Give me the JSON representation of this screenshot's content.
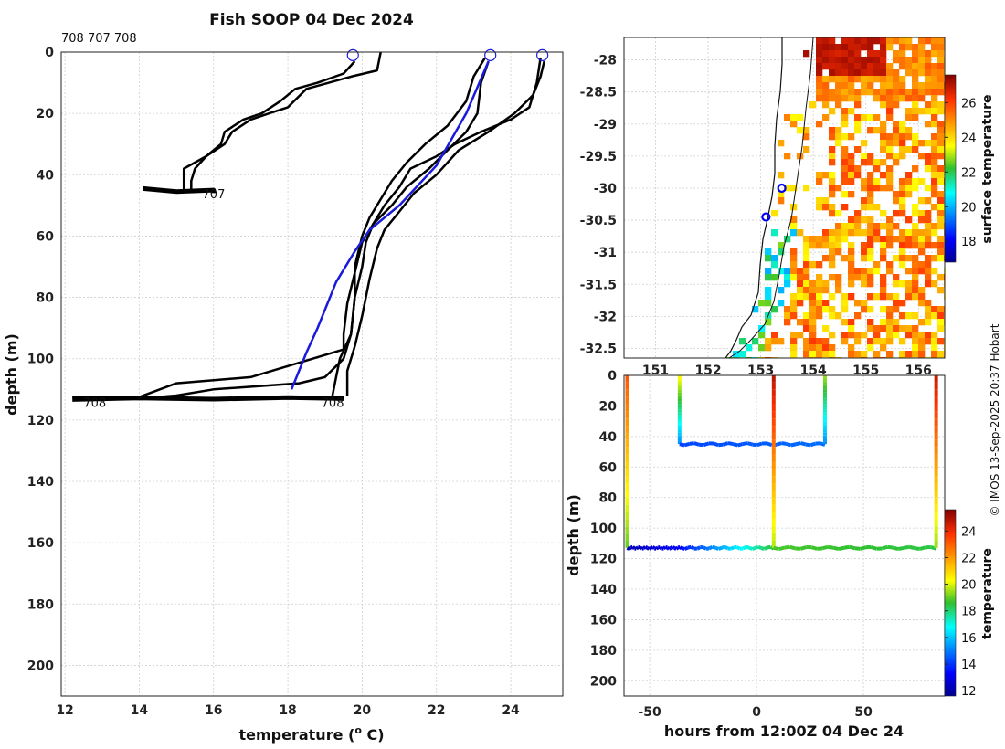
{
  "chart_data": [
    {
      "type": "line",
      "id": "profiles",
      "title": "Fish SOOP 04 Dec 2024",
      "header_ids": "708 707 708",
      "xlabel": "temperature (",
      "xlabel_sup": "o",
      "xlabel_tail": " C)",
      "ylabel": "depth (m)",
      "xlim": [
        11.9,
        25.4
      ],
      "ylim": [
        0,
        210
      ],
      "xticks": [
        "12",
        "14",
        "16",
        "18",
        "20",
        "22",
        "24"
      ],
      "yticks": [
        "0",
        "20",
        "40",
        "60",
        "80",
        "100",
        "120",
        "140",
        "160",
        "180",
        "200"
      ],
      "bottom_labels": [
        "707",
        "708",
        "708"
      ],
      "series": [
        {
          "name": "707 down",
          "color": "#000000",
          "points": [
            [
              20.5,
              0
            ],
            [
              20.4,
              6
            ],
            [
              19.7,
              8
            ],
            [
              18.5,
              12
            ],
            [
              18,
              18
            ],
            [
              17.5,
              20
            ],
            [
              17,
              22
            ],
            [
              16.5,
              26
            ],
            [
              16.3,
              30
            ],
            [
              15.8,
              34
            ],
            [
              15.5,
              38
            ],
            [
              15.4,
              42
            ],
            [
              15.4,
              45
            ]
          ]
        },
        {
          "name": "707 up",
          "color": "#000000",
          "points": [
            [
              15.2,
              45
            ],
            [
              15.2,
              38
            ],
            [
              15.8,
              34
            ],
            [
              16.2,
              30
            ],
            [
              16.3,
              26
            ],
            [
              16.8,
              22
            ],
            [
              17.3,
              20
            ],
            [
              17.8,
              16
            ],
            [
              18.2,
              12
            ],
            [
              18.8,
              10
            ],
            [
              19.5,
              7
            ],
            [
              19.8,
              3
            ]
          ]
        },
        {
          "name": "707 bottom",
          "color": "#000000",
          "points": [
            [
              14.1,
              44.5
            ],
            [
              15,
              45.5
            ],
            [
              16,
              45
            ],
            [
              16,
              46
            ]
          ]
        },
        {
          "name": "708a down",
          "color": "#000000",
          "points": [
            [
              23.3,
              2
            ],
            [
              23,
              8
            ],
            [
              22.8,
              16
            ],
            [
              22.3,
              24
            ],
            [
              21.7,
              30
            ],
            [
              21.2,
              36
            ],
            [
              20.8,
              42
            ],
            [
              20.5,
              48
            ],
            [
              20.2,
              54
            ],
            [
              20,
              60
            ],
            [
              19.8,
              70
            ],
            [
              19.8,
              80
            ],
            [
              19.7,
              92
            ],
            [
              19.5,
              100
            ],
            [
              19,
              106
            ],
            [
              18.3,
              108
            ],
            [
              16,
              110
            ],
            [
              15,
              112
            ],
            [
              14,
              113
            ]
          ]
        },
        {
          "name": "708a up",
          "color": "#000000",
          "points": [
            [
              12.2,
              112.5
            ],
            [
              14,
              112.5
            ],
            [
              15,
              108
            ],
            [
              17,
              106
            ],
            [
              19.5,
              97
            ],
            [
              19.5,
              92
            ],
            [
              19.6,
              82
            ],
            [
              19.8,
              72
            ],
            [
              20,
              62
            ],
            [
              20.3,
              56
            ],
            [
              20.8,
              50
            ],
            [
              21.2,
              44
            ],
            [
              21.8,
              38
            ],
            [
              22.3,
              32
            ],
            [
              22.8,
              26
            ],
            [
              23.1,
              20
            ],
            [
              23.2,
              10
            ],
            [
              23.4,
              3
            ]
          ]
        },
        {
          "name": "708b down",
          "color": "#000000",
          "points": [
            [
              24.8,
              2
            ],
            [
              24.7,
              10
            ],
            [
              24.5,
              18
            ],
            [
              24,
              22
            ],
            [
              23.2,
              26
            ],
            [
              22.5,
              30
            ],
            [
              22,
              34
            ],
            [
              21.3,
              38
            ],
            [
              21,
              44
            ],
            [
              20.6,
              50
            ],
            [
              20.3,
              56
            ],
            [
              20.1,
              62
            ],
            [
              20,
              70
            ],
            [
              19.8,
              80
            ],
            [
              19.7,
              92
            ],
            [
              19.4,
              100
            ],
            [
              19.3,
              106
            ],
            [
              19.2,
              112
            ]
          ]
        },
        {
          "name": "708b up",
          "color": "#000000",
          "points": [
            [
              19.6,
              112
            ],
            [
              19.6,
              104
            ],
            [
              19.8,
              96
            ],
            [
              20,
              86
            ],
            [
              20.2,
              74
            ],
            [
              20.4,
              64
            ],
            [
              20.6,
              58
            ],
            [
              21,
              52
            ],
            [
              21.4,
              46
            ],
            [
              22,
              40
            ],
            [
              22.6,
              32
            ],
            [
              23.4,
              26
            ],
            [
              24.1,
              20
            ],
            [
              24.6,
              14
            ],
            [
              24.8,
              8
            ],
            [
              24.9,
              3
            ]
          ]
        },
        {
          "name": "708 bottom",
          "color": "#000000",
          "points": [
            [
              12.2,
              113.3
            ],
            [
              14,
              112.8
            ],
            [
              16,
              113.2
            ],
            [
              18,
              112.7
            ],
            [
              19.5,
              113
            ]
          ]
        },
        {
          "name": "reference",
          "color": "#1a1adb",
          "points": [
            [
              18.1,
              110
            ],
            [
              18.5,
              98
            ],
            [
              18.8,
              90
            ],
            [
              19.3,
              75
            ],
            [
              19.8,
              65
            ],
            [
              20.2,
              58
            ],
            [
              21,
              50
            ],
            [
              22,
              37
            ],
            [
              22.8,
              20
            ],
            [
              23.4,
              3
            ]
          ]
        }
      ],
      "markers": [
        [
          19.75,
          1
        ],
        [
          23.45,
          1
        ],
        [
          24.85,
          1
        ]
      ]
    },
    {
      "type": "heatmap",
      "id": "sst_map",
      "xlim": [
        150.4,
        156.5
      ],
      "ylim": [
        -32.65,
        -27.65
      ],
      "xticks": [
        "151",
        "152",
        "153",
        "154",
        "155",
        "156"
      ],
      "yticks": [
        "-28",
        "-28.5",
        "-29",
        "-29.5",
        "-30",
        "-30.5",
        "-31",
        "-31.5",
        "-32",
        "-32.5"
      ],
      "colorbar_label": "surface temperature",
      "colorbar_ticks": [
        "18",
        "20",
        "22",
        "24",
        "26"
      ],
      "clim": [
        16.8,
        27.6
      ],
      "stations": [
        [
          153.4,
          -30.0
        ],
        [
          153.1,
          -30.45
        ]
      ]
    },
    {
      "type": "line",
      "id": "time_depth",
      "xlabel": "hours from 12:00Z 04 Dec 24",
      "ylabel": "depth (m)",
      "xlim": [
        -62,
        88
      ],
      "ylim": [
        0,
        210
      ],
      "xticks": [
        "-50",
        "0",
        "50"
      ],
      "yticks": [
        "0",
        "20",
        "40",
        "60",
        "80",
        "100",
        "120",
        "140",
        "160",
        "180",
        "200"
      ],
      "colorbar_label": "temperature",
      "colorbar_ticks": [
        "12",
        "14",
        "16",
        "18",
        "20",
        "22",
        "24"
      ],
      "clim": [
        11.6,
        25.6
      ]
    }
  ],
  "watermark": "© IMOS 13-Sep-2025 20:37 Hobart"
}
